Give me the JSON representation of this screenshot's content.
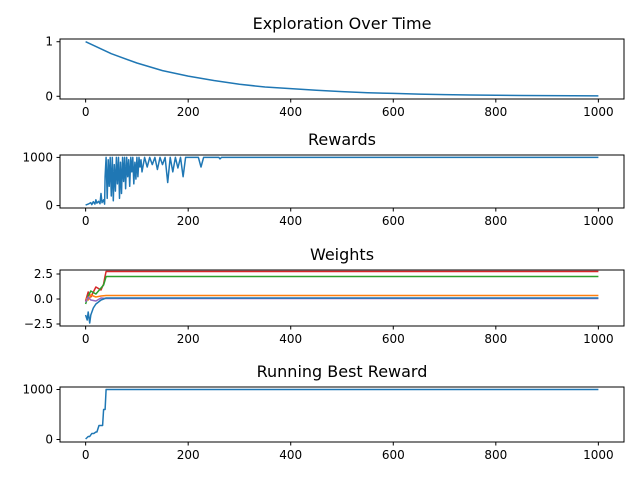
{
  "chart_data": [
    {
      "type": "line",
      "title": "Exploration Over Time",
      "xlim": [
        -50,
        1050
      ],
      "ylim": [
        -0.05,
        1.05
      ],
      "xticks": [
        0,
        200,
        400,
        600,
        800,
        1000
      ],
      "yticks": [
        0,
        1
      ],
      "series": [
        {
          "color": "#1f77b4",
          "x": [
            0,
            50,
            100,
            150,
            200,
            250,
            300,
            350,
            400,
            450,
            500,
            550,
            600,
            650,
            700,
            750,
            800,
            850,
            900,
            950,
            1000
          ],
          "y": [
            1.0,
            0.78,
            0.61,
            0.47,
            0.37,
            0.29,
            0.22,
            0.17,
            0.14,
            0.11,
            0.085,
            0.066,
            0.052,
            0.04,
            0.031,
            0.024,
            0.019,
            0.015,
            0.012,
            0.009,
            0.007
          ]
        }
      ]
    },
    {
      "type": "line",
      "title": "Rewards",
      "xlim": [
        -50,
        1050
      ],
      "ylim": [
        -50,
        1050
      ],
      "xticks": [
        0,
        200,
        400,
        600,
        800,
        1000
      ],
      "yticks": [
        0,
        1000
      ],
      "series": [
        {
          "color": "#1f77b4",
          "x": [
            0,
            5,
            10,
            12,
            15,
            18,
            20,
            22,
            25,
            28,
            30,
            32,
            35,
            37,
            38,
            40,
            42,
            44,
            46,
            48,
            50,
            52,
            54,
            56,
            58,
            60,
            62,
            64,
            66,
            68,
            70,
            72,
            74,
            76,
            78,
            80,
            82,
            84,
            86,
            88,
            90,
            92,
            94,
            96,
            98,
            100,
            102,
            104,
            106,
            108,
            110,
            115,
            120,
            125,
            130,
            135,
            140,
            145,
            150,
            155,
            160,
            165,
            170,
            175,
            180,
            185,
            190,
            195,
            200,
            205,
            210,
            215,
            220,
            225,
            230,
            260,
            262,
            265,
            300,
            1000
          ],
          "y": [
            10,
            30,
            60,
            20,
            80,
            30,
            120,
            50,
            90,
            40,
            250,
            60,
            120,
            30,
            600,
            1000,
            150,
            950,
            400,
            1000,
            200,
            1000,
            100,
            850,
            300,
            1000,
            450,
            1000,
            150,
            900,
            250,
            1000,
            500,
            1000,
            350,
            1000,
            600,
            950,
            400,
            1000,
            700,
            1000,
            450,
            900,
            550,
            1000,
            600,
            1000,
            800,
            950,
            700,
            1000,
            800,
            1000,
            850,
            1000,
            750,
            1000,
            850,
            1000,
            480,
            1000,
            700,
            1000,
            780,
            1000,
            600,
            1000,
            1000,
            1000,
            1000,
            1000,
            1000,
            800,
            1000,
            1000,
            970,
            1000,
            1000,
            1000
          ]
        }
      ]
    },
    {
      "type": "line",
      "title": "Weights",
      "xlim": [
        -50,
        1050
      ],
      "ylim": [
        -2.7,
        2.9
      ],
      "xticks": [
        0,
        200,
        400,
        600,
        800,
        1000
      ],
      "yticks": [
        -2.5,
        0.0,
        2.5
      ],
      "ytick_labels": [
        "−2.5",
        "0.0",
        "2.5"
      ],
      "series": [
        {
          "color": "#d62728",
          "x": [
            0,
            5,
            10,
            20,
            30,
            35,
            38,
            40,
            1000
          ],
          "y": [
            -0.2,
            0.7,
            0.2,
            1.2,
            0.9,
            1.5,
            2.3,
            2.75,
            2.75
          ]
        },
        {
          "color": "#2ca02c",
          "x": [
            0,
            5,
            10,
            20,
            30,
            35,
            38,
            40,
            1000
          ],
          "y": [
            -0.5,
            0.3,
            0.8,
            0.5,
            1.1,
            1.4,
            1.9,
            2.25,
            2.25
          ]
        },
        {
          "color": "#ff7f0e",
          "x": [
            0,
            5,
            10,
            20,
            30,
            40,
            1000
          ],
          "y": [
            0.1,
            -0.1,
            0.4,
            0.2,
            0.3,
            0.35,
            0.35
          ]
        },
        {
          "color": "#9467bd",
          "x": [
            0,
            5,
            10,
            20,
            30,
            40,
            1000
          ],
          "y": [
            -0.3,
            0.2,
            -0.1,
            -0.2,
            0.1,
            0.05,
            0.05
          ]
        },
        {
          "color": "#1f77b4",
          "x": [
            0,
            3,
            5,
            8,
            10,
            15,
            20,
            25,
            30,
            35,
            40,
            1000
          ],
          "y": [
            -1.6,
            -2.1,
            -1.3,
            -2.4,
            -1.6,
            -0.9,
            -0.5,
            -0.3,
            -0.1,
            0.0,
            0.1,
            0.1
          ]
        }
      ]
    },
    {
      "type": "line",
      "title": "Running Best Reward",
      "xlim": [
        -50,
        1050
      ],
      "ylim": [
        -50,
        1050
      ],
      "xticks": [
        0,
        200,
        400,
        600,
        800,
        1000
      ],
      "yticks": [
        0,
        1000
      ],
      "series": [
        {
          "color": "#1f77b4",
          "x": [
            0,
            3,
            5,
            8,
            12,
            16,
            20,
            22,
            26,
            30,
            33,
            35,
            38,
            40,
            1000
          ],
          "y": [
            10,
            40,
            60,
            60,
            120,
            120,
            150,
            150,
            280,
            280,
            280,
            600,
            600,
            1000,
            1000
          ]
        }
      ]
    }
  ]
}
